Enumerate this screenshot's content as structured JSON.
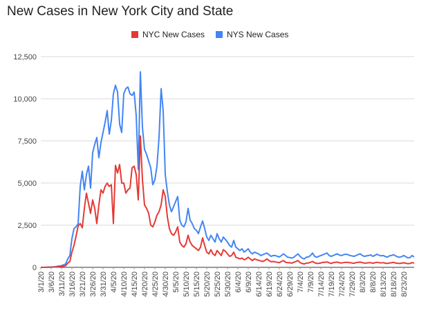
{
  "chart_data": {
    "type": "line",
    "title": "New Cases in New York City and State",
    "xlabel": "",
    "ylabel": "",
    "ylim": [
      0,
      12500
    ],
    "yticks": [
      "0",
      "2,500",
      "5,000",
      "7,500",
      "10,000",
      "12,500"
    ],
    "ytick_values": [
      0,
      2500,
      5000,
      7500,
      10000,
      12500
    ],
    "grid": true,
    "legend_position": "top",
    "x_start": "3/1/20",
    "x_tick_labels": [
      "3/1/20",
      "3/6/20",
      "3/11/20",
      "3/16/20",
      "3/21/20",
      "3/26/20",
      "3/31/20",
      "4/5/20",
      "4/10/20",
      "4/15/20",
      "4/20/20",
      "4/25/20",
      "4/30/20",
      "5/5/20",
      "5/10/20",
      "5/15/20",
      "5/20/20",
      "5/25/20",
      "5/30/20",
      "6/4/20",
      "6/9/20",
      "6/14/20",
      "6/19/20",
      "6/24/20",
      "6/29/20",
      "7/4/20",
      "7/9/20",
      "7/14/20",
      "7/19/20",
      "7/24/20",
      "7/29/20",
      "8/3/20",
      "8/8/20",
      "8/13/20",
      "8/18/20",
      "8/23/20"
    ],
    "series": [
      {
        "name": "NYC New Cases",
        "color": "#e53935",
        "values": [
          0,
          0,
          2,
          3,
          5,
          10,
          15,
          20,
          30,
          40,
          50,
          70,
          100,
          250,
          350,
          900,
          1300,
          1850,
          2450,
          2600,
          2350,
          3500,
          4400,
          3800,
          3200,
          4000,
          3500,
          2600,
          3700,
          4600,
          4400,
          4800,
          5000,
          4800,
          4900,
          2600,
          6050,
          5600,
          6100,
          5000,
          5000,
          4400,
          4600,
          4700,
          5900,
          6000,
          5500,
          4000,
          7800,
          5200,
          3700,
          3500,
          3200,
          2500,
          2400,
          2700,
          3100,
          3300,
          3700,
          4600,
          4200,
          3000,
          2300,
          2000,
          1900,
          2100,
          2400,
          1500,
          1300,
          1200,
          1400,
          1900,
          1500,
          1300,
          1200,
          1100,
          1000,
          1200,
          1750,
          1300,
          900,
          800,
          1050,
          800,
          700,
          1000,
          850,
          700,
          1050,
          950,
          800,
          650,
          700,
          900,
          600,
          550,
          500,
          550,
          450,
          500,
          600,
          500,
          400,
          500,
          450,
          420,
          380,
          350,
          400,
          500,
          400,
          330,
          350,
          320,
          300,
          280,
          350,
          400,
          300,
          280,
          270,
          250,
          300,
          350,
          400,
          280,
          230,
          200,
          250,
          260,
          300,
          350,
          280,
          230,
          240,
          260,
          300,
          300,
          320,
          270,
          230,
          280,
          300,
          310,
          270,
          260,
          280,
          300,
          290,
          280,
          260,
          240,
          280,
          300,
          310,
          280,
          250,
          260,
          270,
          280,
          240,
          270,
          300,
          280,
          260,
          280,
          250,
          230,
          260,
          270,
          290,
          260,
          240,
          230,
          250,
          270,
          240,
          220,
          230,
          280,
          250
        ]
      },
      {
        "name": "NYS New Cases",
        "color": "#4285f4",
        "values": [
          0,
          0,
          5,
          10,
          15,
          20,
          30,
          40,
          60,
          80,
          100,
          150,
          200,
          500,
          700,
          1700,
          2300,
          2400,
          2600,
          4800,
          5700,
          4600,
          5500,
          6000,
          4700,
          6800,
          7300,
          7700,
          6500,
          7400,
          8000,
          8600,
          9300,
          7900,
          8700,
          10300,
          10800,
          10400,
          8500,
          8000,
          10300,
          10600,
          10700,
          10300,
          10200,
          10400,
          9000,
          5800,
          11600,
          8300,
          7000,
          6700,
          6300,
          5900,
          4900,
          5200,
          6000,
          7700,
          10600,
          9300,
          5500,
          4500,
          3700,
          3300,
          3600,
          3900,
          4200,
          2800,
          2500,
          2400,
          2700,
          3500,
          2800,
          2600,
          2300,
          2200,
          2000,
          2400,
          2750,
          2300,
          1800,
          1600,
          1900,
          1700,
          1500,
          2000,
          1700,
          1500,
          1800,
          1650,
          1500,
          1300,
          1200,
          1600,
          1200,
          1100,
          1000,
          1100,
          900,
          1000,
          1100,
          900,
          800,
          900,
          850,
          800,
          700,
          750,
          800,
          850,
          750,
          650,
          700,
          700,
          650,
          620,
          700,
          800,
          700,
          600,
          580,
          550,
          600,
          700,
          800,
          650,
          550,
          500,
          600,
          620,
          700,
          850,
          650,
          600,
          650,
          700,
          750,
          800,
          850,
          700,
          650,
          700,
          760,
          800,
          720,
          700,
          750,
          780,
          760,
          700,
          680,
          650,
          700,
          760,
          800,
          700,
          650,
          680,
          700,
          740,
          650,
          700,
          780,
          720,
          680,
          700,
          650,
          600,
          680,
          700,
          750,
          680,
          620,
          600,
          640,
          700,
          630,
          560,
          580,
          700,
          620
        ]
      }
    ]
  }
}
